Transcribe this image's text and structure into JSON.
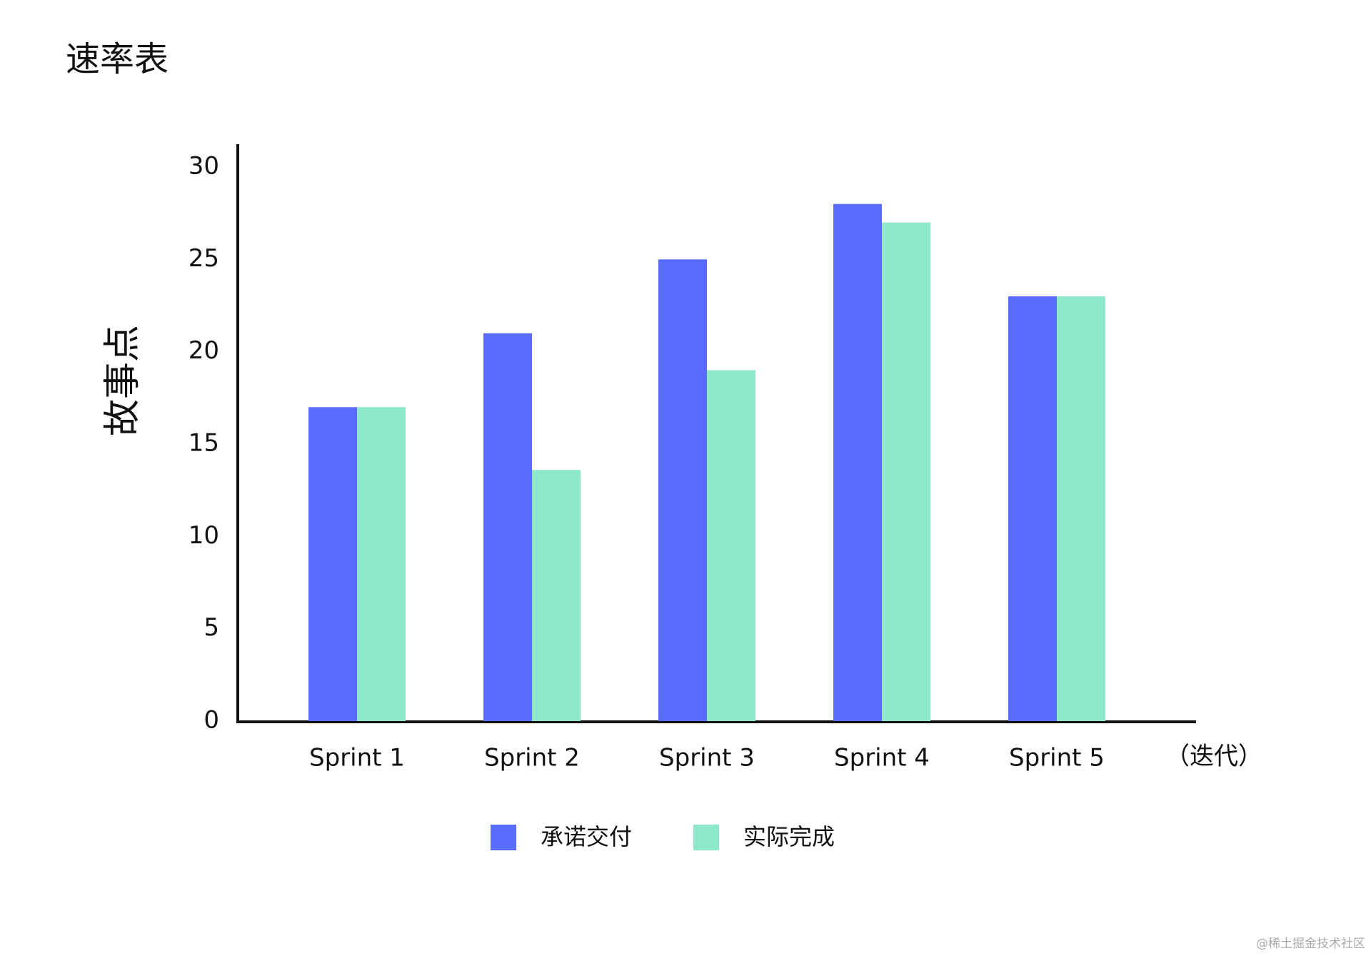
{
  "chart_data": {
    "type": "bar",
    "title": "速率表",
    "y_label": "故事点",
    "x_label": "（迭代）",
    "categories": [
      "Sprint 1",
      "Sprint 2",
      "Sprint 3",
      "Sprint 4",
      "Sprint 5"
    ],
    "series": [
      {
        "name": "承诺交付",
        "color": "#5a6bff",
        "values": [
          17,
          21,
          25,
          28,
          23
        ]
      },
      {
        "name": "实际完成",
        "color": "#8ee6cb",
        "values": [
          17,
          13.6,
          19,
          27,
          23
        ]
      }
    ],
    "ylim": [
      0,
      30
    ],
    "yticks": [
      0,
      5,
      10,
      15,
      20,
      25,
      30
    ],
    "grid": false,
    "legend": "bottom"
  },
  "watermark": "@稀土掘金技术社区"
}
